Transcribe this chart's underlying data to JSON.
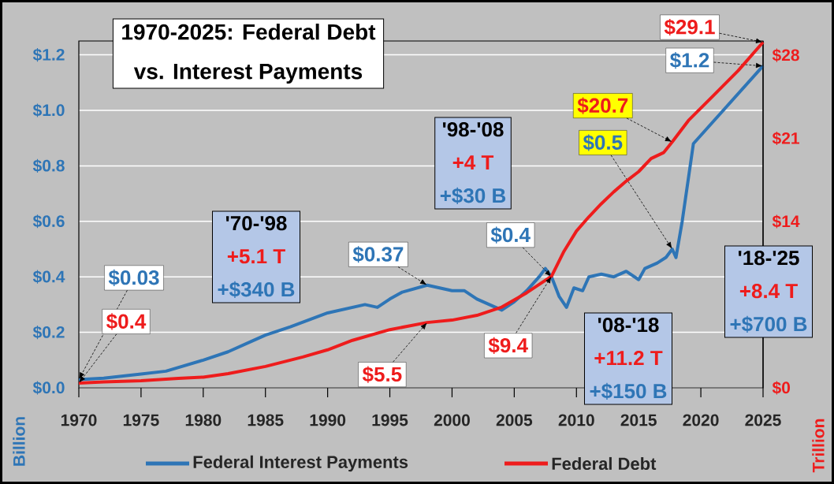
{
  "chart_data": {
    "type": "line",
    "title": "1970-2025: Federal Debt",
    "subtitle": "vs. Interest Payments",
    "ylabel": "Billion",
    "y2label": "Trillion",
    "xlim": [
      1970,
      2025
    ],
    "xticks": [
      1970,
      1975,
      1980,
      1985,
      1990,
      1995,
      2000,
      2005,
      2010,
      2015,
      2020,
      2025
    ],
    "ylim": [
      0,
      1.25
    ],
    "yticks": [
      {
        "value": 0,
        "label": "$0.0"
      },
      {
        "value": 0.2,
        "label": "$0.2"
      },
      {
        "value": 0.4,
        "label": "$0.4"
      },
      {
        "value": 0.6,
        "label": "$0.6"
      },
      {
        "value": 0.8,
        "label": "$0.8"
      },
      {
        "value": 1.0,
        "label": "$1.0"
      },
      {
        "value": 1.2,
        "label": "$1.2"
      }
    ],
    "y2lim": [
      0,
      29.2
    ],
    "y2ticks": [
      {
        "value": 0,
        "label": "$0"
      },
      {
        "value": 14,
        "label": "$14"
      },
      {
        "value": 21,
        "label": "$21"
      },
      {
        "value": 28,
        "label": "$28"
      }
    ],
    "grid": "y",
    "legend": "bottom",
    "series": [
      {
        "name": "Federal Interest Payments",
        "color": "#2e75b6",
        "x": [
          1970,
          1972,
          1975,
          1977,
          1980,
          1982,
          1984,
          1985,
          1987,
          1990,
          1992,
          1993,
          1994,
          1995,
          1996,
          1998,
          1999,
          2000,
          2001,
          2002,
          2003,
          2004,
          2005,
          2006,
          2007,
          2007.5,
          2008,
          2008.6,
          2009.2,
          2009.8,
          2010.5,
          2011,
          2012,
          2013,
          2014,
          2015,
          2015.5,
          2016.5,
          2017.2,
          2017.7,
          2018,
          2018.5,
          2019.4,
          2025
        ],
        "values": [
          0.03,
          0.035,
          0.05,
          0.06,
          0.1,
          0.13,
          0.17,
          0.19,
          0.22,
          0.27,
          0.29,
          0.3,
          0.29,
          0.32,
          0.345,
          0.37,
          0.36,
          0.35,
          0.35,
          0.32,
          0.3,
          0.28,
          0.31,
          0.35,
          0.4,
          0.43,
          0.4,
          0.33,
          0.29,
          0.36,
          0.35,
          0.4,
          0.41,
          0.4,
          0.42,
          0.39,
          0.43,
          0.45,
          0.47,
          0.5,
          0.47,
          0.6,
          0.88,
          1.16
        ],
        "value_labels": [
          "$0.03",
          null,
          null,
          null,
          null,
          null,
          null,
          null,
          null,
          null,
          null,
          null,
          null,
          null,
          null,
          "$0.37",
          null,
          null,
          null,
          null,
          null,
          null,
          null,
          null,
          null,
          null,
          "$0.4",
          null,
          null,
          null,
          null,
          null,
          null,
          null,
          null,
          null,
          null,
          null,
          null,
          "$0.5",
          null,
          null,
          null,
          "$1.2"
        ]
      },
      {
        "name": "Federal Debt",
        "color": "#ee1c1c",
        "axis": "y2",
        "x": [
          1970,
          1972,
          1975,
          1978,
          1980,
          1982,
          1985,
          1988,
          1990,
          1992,
          1995,
          1998,
          2000,
          2002,
          2004,
          2006,
          2008,
          2009,
          2010,
          2011,
          2012,
          2013,
          2014,
          2015,
          2016,
          2017,
          2017.7,
          2019,
          2021,
          2023,
          2025
        ],
        "values": [
          0.4,
          0.5,
          0.6,
          0.8,
          0.9,
          1.2,
          1.8,
          2.6,
          3.2,
          4.0,
          4.9,
          5.5,
          5.7,
          6.1,
          6.8,
          8.0,
          9.4,
          11.5,
          13.2,
          14.4,
          15.5,
          16.5,
          17.4,
          18.2,
          19.3,
          19.8,
          20.7,
          22.5,
          24.6,
          26.7,
          29.1
        ],
        "value_labels": [
          "$0.4",
          null,
          null,
          null,
          null,
          null,
          null,
          null,
          null,
          null,
          null,
          "$5.5",
          null,
          null,
          null,
          null,
          "$9.4",
          null,
          null,
          null,
          null,
          null,
          null,
          null,
          null,
          null,
          "$20.7",
          null,
          null,
          null,
          "$29.1"
        ]
      }
    ],
    "annotations": [
      "'70-'98",
      "+5.1 T",
      "+$340 B",
      "'98-'08",
      "+4 T",
      "+$30 B",
      "'08-'18",
      "+11.2 T",
      "+$150 B",
      "'18-'25",
      "+8.4 T",
      "+$700 B"
    ]
  }
}
